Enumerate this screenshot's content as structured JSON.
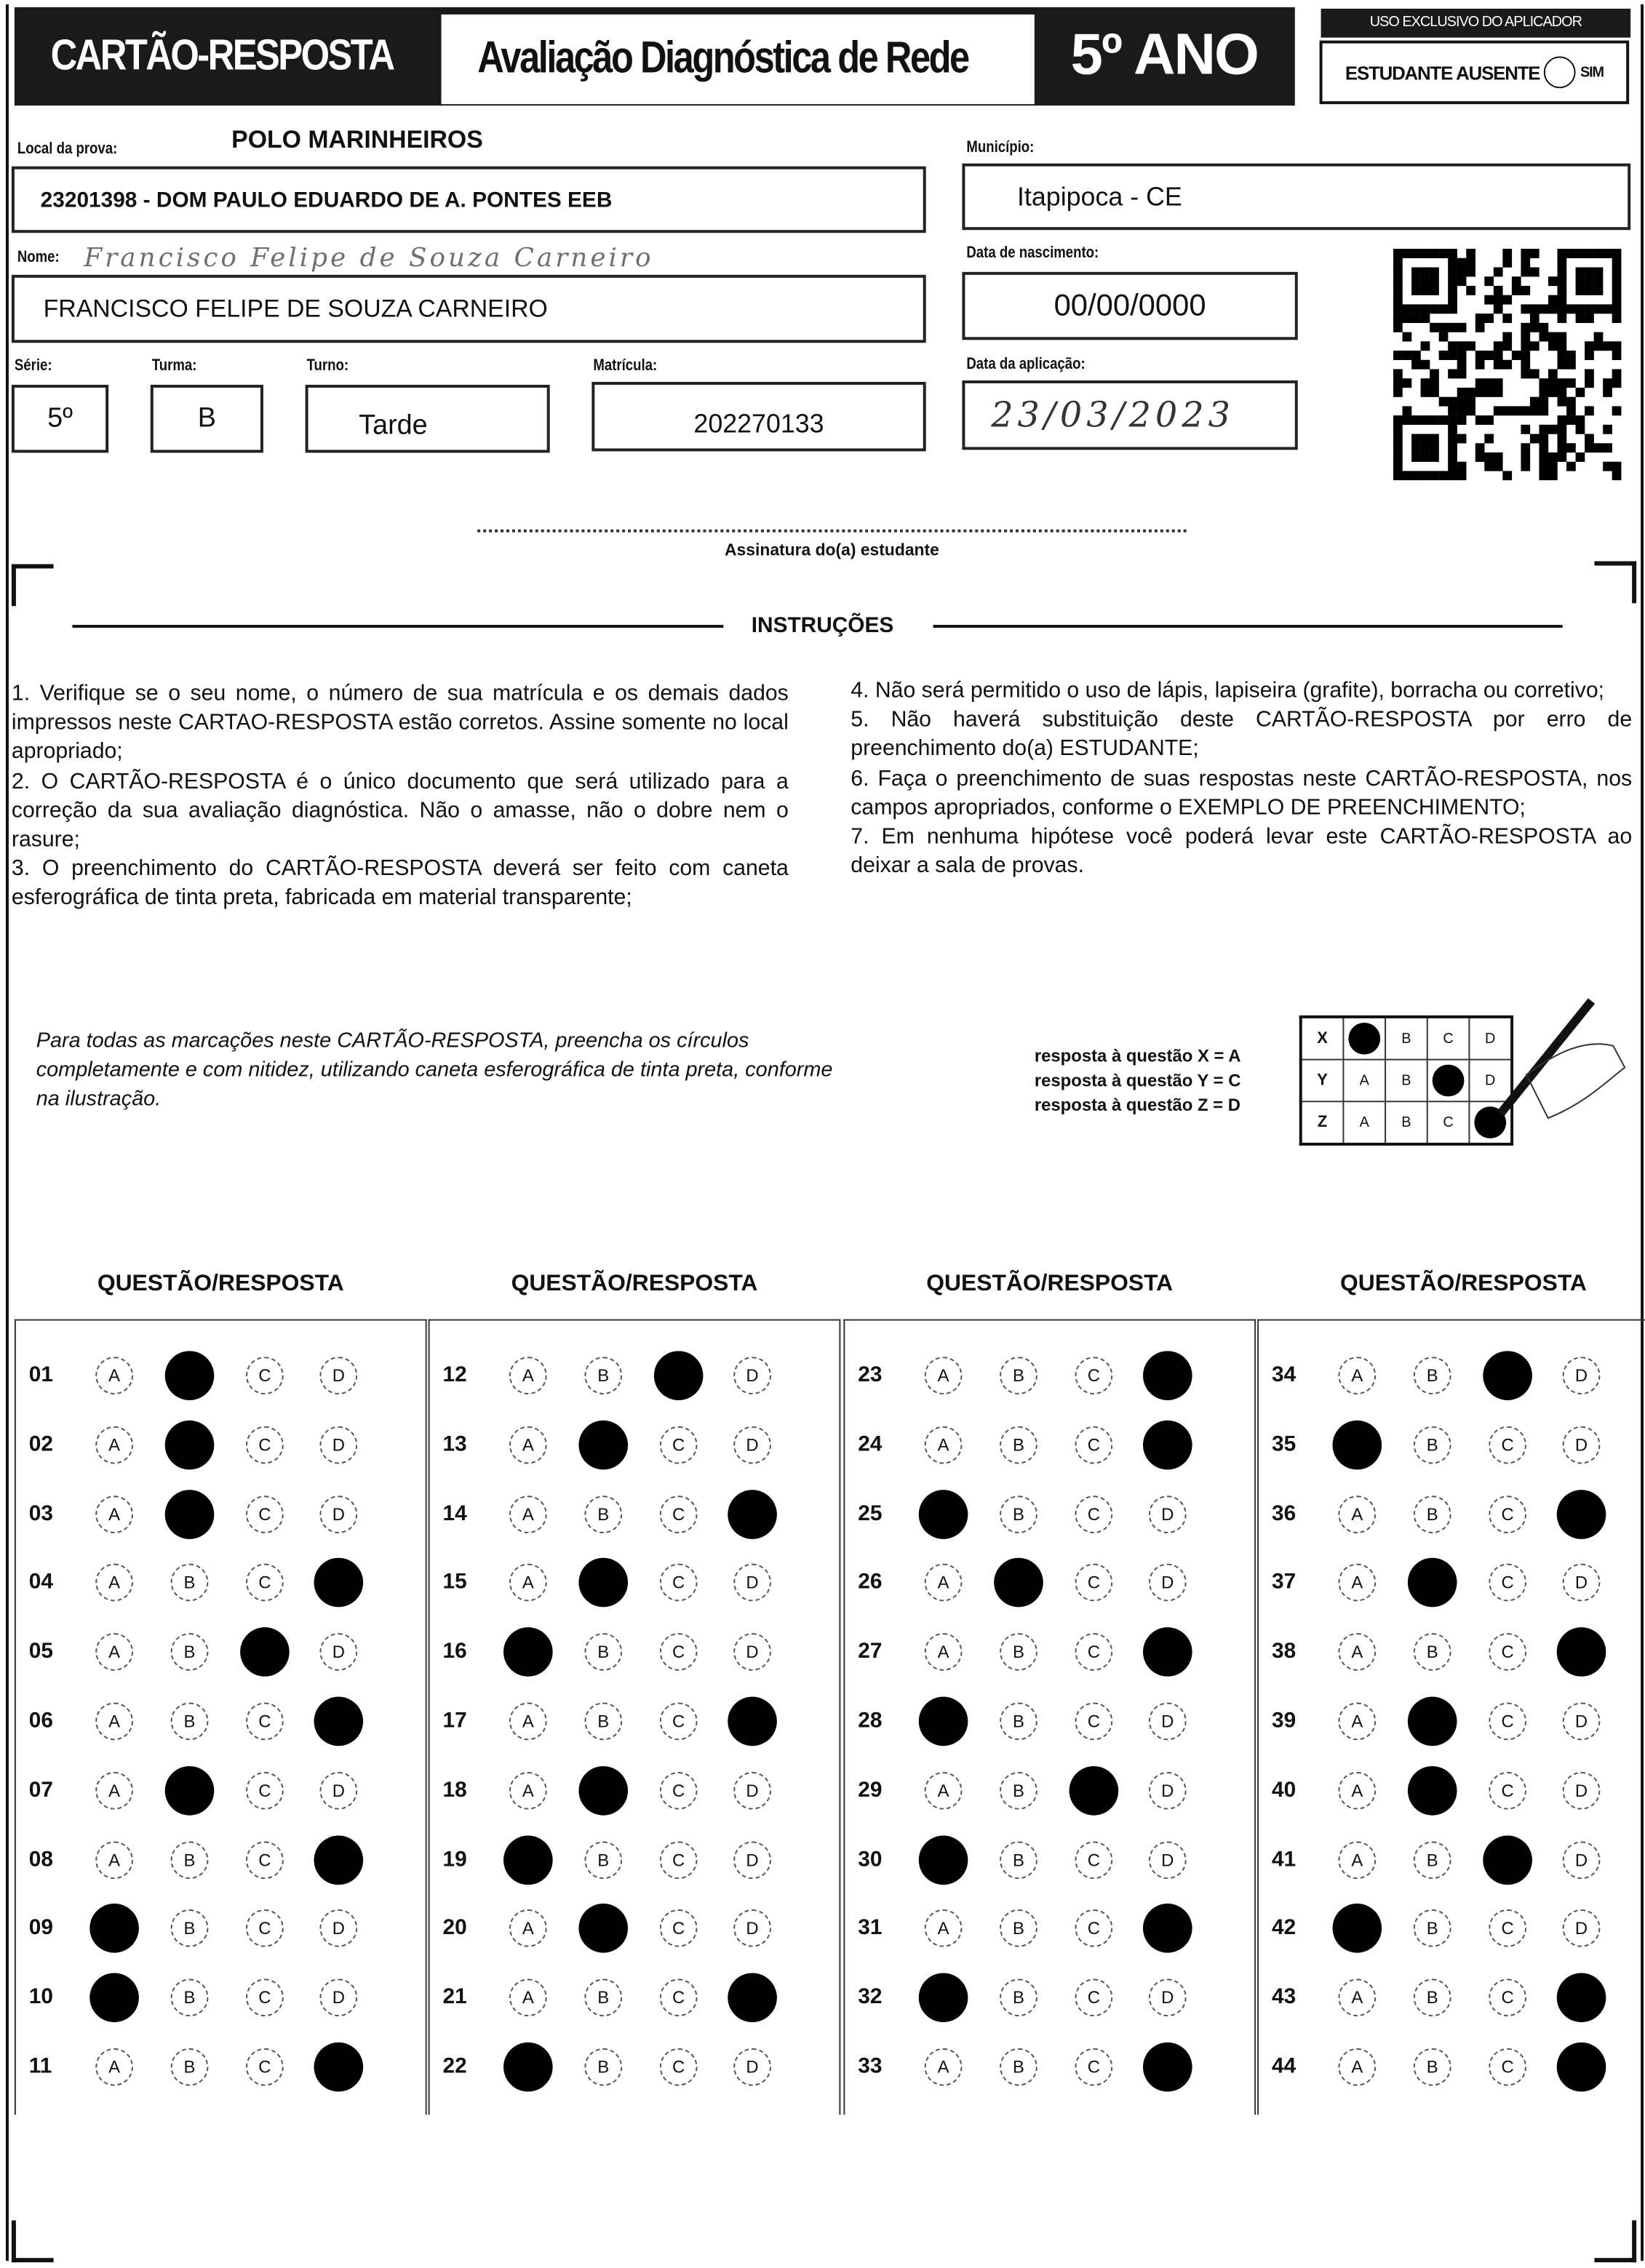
{
  "header": {
    "title": "CARTÃO-RESPOSTA",
    "subtitle": "Avaliação Diagnóstica de Rede",
    "grade": "5º ANO",
    "applicator_label": "USO EXCLUSIVO DO APLICADOR",
    "absent_label": "ESTUDANTE AUSENTE",
    "absent_option": "SIM"
  },
  "fields": {
    "local_label": "Local da prova:",
    "local_polo": "POLO MARINHEIROS",
    "local_value": "23201398 - DOM PAULO EDUARDO DE A. PONTES EEB",
    "municipio_label": "Município:",
    "municipio_value": "Itapipoca - CE",
    "nome_label": "Nome:",
    "nome_handwritten": "Francisco Felipe de Souza Carneiro",
    "nome_value": "FRANCISCO FELIPE DE SOUZA CARNEIRO",
    "nascimento_label": "Data de nascimento:",
    "nascimento_value": "00/00/0000",
    "serie_label": "Série:",
    "serie_value": "5º",
    "turma_label": "Turma:",
    "turma_value": "B",
    "turno_label": "Turno:",
    "turno_value": "Tarde",
    "matricula_label": "Matrícula:",
    "matricula_value": "202270133",
    "aplicacao_label": "Data da aplicação:",
    "aplicacao_handwritten": "23/03/2023",
    "assinatura_label": "Assinatura do(a) estudante"
  },
  "instructions": {
    "title": "INSTRUÇÕES",
    "left": [
      "1. Verifique se o seu nome, o número de sua matrícula e os demais dados impressos neste CARTAO-RESPOSTA estão corretos. Assine somente no local apropriado;",
      "2. O CARTÃO-RESPOSTA é o único documento que será utilizado para a correção da sua avaliação diagnóstica. Não o amasse, não o dobre nem o rasure;",
      "3. O preenchimento do CARTÃO-RESPOSTA deverá ser feito com caneta esferográfica de tinta preta, fabricada em material transparente;"
    ],
    "right": [
      "4. Não será permitido o uso de lápis, lapiseira (grafite), borracha ou corretivo;",
      "5. Não haverá substituição deste CARTÃO-RESPOSTA por erro de preenchimento do(a) ESTUDANTE;",
      "6. Faça o preenchimento de suas respostas neste CARTÃO-RESPOSTA, nos campos apropriados, conforme o EXEMPLO DE PREENCHIMENTO;",
      "7. Em nenhuma hipótese você poderá levar este CARTÃO-RESPOSTA ao deixar a sala de provas."
    ]
  },
  "example": {
    "text": "Para todas as marcações neste CARTÃO-RESPOSTA, preencha os círculos completamente e com nitidez, utilizando caneta esferográfica de tinta preta, conforme na ilustração.",
    "answers": [
      "resposta à questão X = A",
      "resposta à questão Y = C",
      "resposta à questão Z = D"
    ],
    "grid": [
      {
        "q": "X",
        "marked": "A"
      },
      {
        "q": "Y",
        "marked": "C"
      },
      {
        "q": "Z",
        "marked": "D"
      }
    ]
  },
  "answer_sheet": {
    "section_title": "QUESTÃO/RESPOSTA",
    "options": [
      "A",
      "B",
      "C",
      "D"
    ],
    "questions": [
      {
        "n": "01",
        "m": "B"
      },
      {
        "n": "02",
        "m": "B"
      },
      {
        "n": "03",
        "m": "B"
      },
      {
        "n": "04",
        "m": "D"
      },
      {
        "n": "05",
        "m": "C"
      },
      {
        "n": "06",
        "m": "D"
      },
      {
        "n": "07",
        "m": "B"
      },
      {
        "n": "08",
        "m": "D"
      },
      {
        "n": "09",
        "m": "A"
      },
      {
        "n": "10",
        "m": "A"
      },
      {
        "n": "11",
        "m": "D"
      },
      {
        "n": "12",
        "m": "C"
      },
      {
        "n": "13",
        "m": "B"
      },
      {
        "n": "14",
        "m": "D"
      },
      {
        "n": "15",
        "m": "B"
      },
      {
        "n": "16",
        "m": "A"
      },
      {
        "n": "17",
        "m": "D"
      },
      {
        "n": "18",
        "m": "B"
      },
      {
        "n": "19",
        "m": "A"
      },
      {
        "n": "20",
        "m": "B"
      },
      {
        "n": "21",
        "m": "D"
      },
      {
        "n": "22",
        "m": "A"
      },
      {
        "n": "23",
        "m": "D"
      },
      {
        "n": "24",
        "m": "D"
      },
      {
        "n": "25",
        "m": "A"
      },
      {
        "n": "26",
        "m": "B"
      },
      {
        "n": "27",
        "m": "D"
      },
      {
        "n": "28",
        "m": "A"
      },
      {
        "n": "29",
        "m": "C"
      },
      {
        "n": "30",
        "m": "A"
      },
      {
        "n": "31",
        "m": "D"
      },
      {
        "n": "32",
        "m": "A"
      },
      {
        "n": "33",
        "m": "D"
      },
      {
        "n": "34",
        "m": "C"
      },
      {
        "n": "35",
        "m": "A"
      },
      {
        "n": "36",
        "m": "D"
      },
      {
        "n": "37",
        "m": "B"
      },
      {
        "n": "38",
        "m": "D"
      },
      {
        "n": "39",
        "m": "B"
      },
      {
        "n": "40",
        "m": "B"
      },
      {
        "n": "41",
        "m": "C"
      },
      {
        "n": "42",
        "m": "A"
      },
      {
        "n": "43",
        "m": "D"
      },
      {
        "n": "44",
        "m": "D"
      }
    ]
  }
}
